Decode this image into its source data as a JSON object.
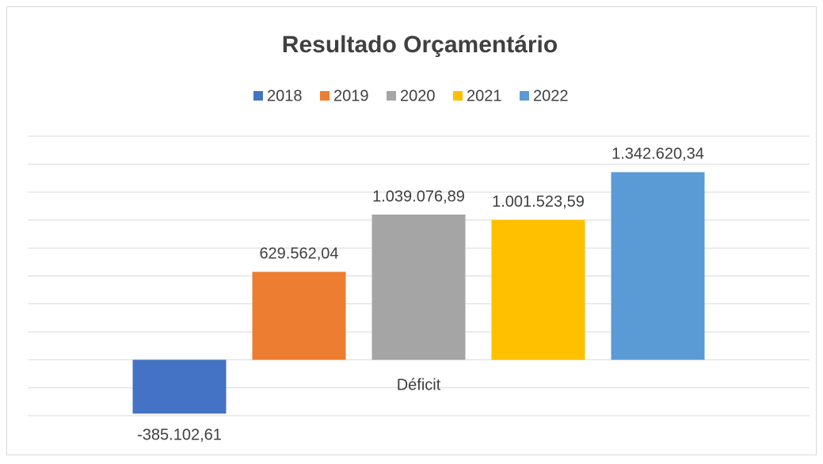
{
  "chart_data": {
    "type": "bar",
    "title": "Resultado Orçamentário",
    "categories": [
      "Déficit"
    ],
    "series": [
      {
        "name": "2018",
        "color": "#4472c4",
        "values": [
          -385102.61
        ],
        "value_labels": [
          "-385.102,61"
        ]
      },
      {
        "name": "2019",
        "color": "#ed7d31",
        "values": [
          629562.04
        ],
        "value_labels": [
          "629.562,04"
        ]
      },
      {
        "name": "2020",
        "color": "#a5a5a5",
        "values": [
          1039076.89
        ],
        "value_labels": [
          "1.039.076,89"
        ]
      },
      {
        "name": "2021",
        "color": "#ffc000",
        "values": [
          1001523.59
        ],
        "value_labels": [
          "1.001.523,59"
        ]
      },
      {
        "name": "2022",
        "color": "#5b9bd5",
        "values": [
          1342620.34
        ],
        "value_labels": [
          "1.342.620,34"
        ]
      }
    ],
    "ylim": [
      -400000,
      1600000
    ],
    "yticks": [
      -400000,
      -200000,
      0,
      200000,
      400000,
      600000,
      800000,
      1000000,
      1200000,
      1400000,
      1600000
    ],
    "grid": true,
    "legend": "top"
  }
}
